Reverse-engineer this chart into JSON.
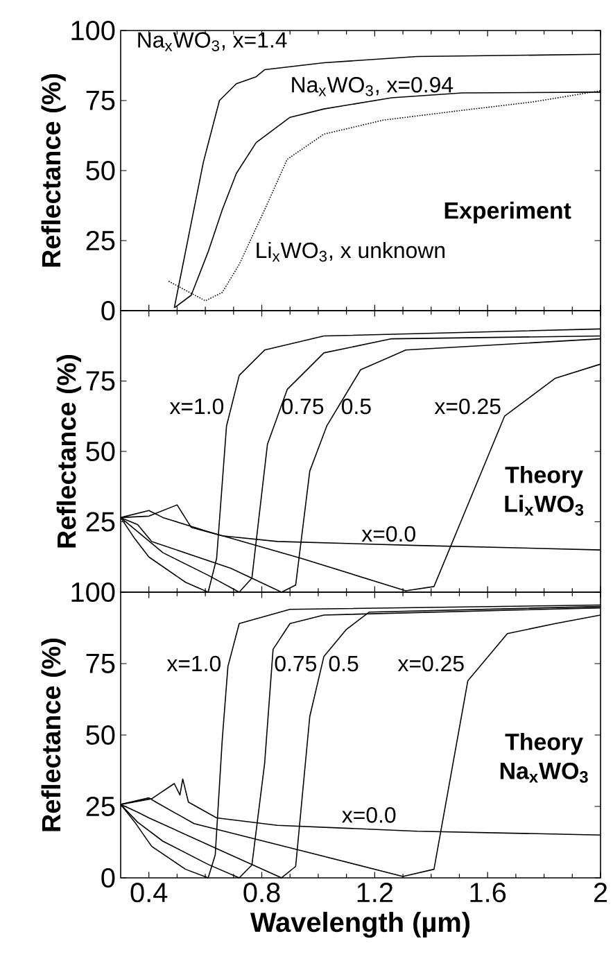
{
  "chart_data": [
    {
      "type": "line",
      "ylabel": "Reflectance (%)",
      "xlim": [
        0.3,
        2.0
      ],
      "ylim": [
        0,
        100
      ],
      "xticks": [
        0.4,
        0.8,
        1.2,
        1.6,
        2
      ],
      "yticks": [
        0,
        25,
        50,
        75,
        100
      ],
      "tick_labels": "y",
      "marker": "none",
      "grid": false,
      "annotations": [
        "Experiment"
      ],
      "series": [
        {
          "name": "Na$_{x}$WO$_{3}$, x=1.4",
          "color": "#000000",
          "line_style": "solid",
          "x": [
            0.49,
            0.593,
            0.65,
            0.71,
            0.78,
            0.81,
            1.02,
            1.35,
            2.0
          ],
          "values": [
            1,
            53,
            75,
            81,
            83.5,
            86,
            88.5,
            90.7,
            91.5
          ]
        },
        {
          "name": "Na$_{x}$WO$_{3}$, x=0.94",
          "color": "#000000",
          "line_style": "solid",
          "x": [
            0.49,
            0.55,
            0.61,
            0.66,
            0.71,
            0.78,
            0.9,
            1.02,
            1.26,
            1.51,
            2.0
          ],
          "values": [
            1,
            5.5,
            21,
            36,
            49,
            60,
            69,
            72,
            76,
            77.7,
            78
          ]
        },
        {
          "name": "Li$_{x}$WO$_{3}$, x unknown",
          "color": "#000000",
          "line_style": "dotted",
          "x": [
            0.47,
            0.6,
            0.66,
            0.72,
            0.81,
            0.89,
            1.02,
            1.23,
            1.51,
            1.76,
            2.0
          ],
          "values": [
            10.5,
            3.5,
            6.5,
            16.5,
            36,
            54,
            63,
            68,
            71.5,
            74.5,
            78.5
          ]
        }
      ]
    },
    {
      "type": "line",
      "ylabel": "Reflectance (%)",
      "xlim": [
        0.3,
        2.0
      ],
      "ylim": [
        0,
        100
      ],
      "xticks": [
        0.4,
        0.8,
        1.2,
        1.6,
        2
      ],
      "yticks": [
        {
          "value": 0,
          "label": null
        },
        25,
        50,
        75,
        {
          "value": 100,
          "label": null
        }
      ],
      "tick_labels": "y",
      "marker": "none",
      "grid": false,
      "annotations": [
        "Theory Li$_{x}$WO$_{3}$"
      ],
      "series": [
        {
          "name": "x=1.0",
          "color": "#000000",
          "line_style": "solid",
          "x": [
            0.3,
            0.35,
            0.4,
            0.53,
            0.61,
            0.64,
            0.675,
            0.72,
            0.81,
            1.02,
            2.0
          ],
          "values": [
            26.5,
            19,
            12.5,
            3.5,
            0,
            12,
            59,
            77,
            86,
            91,
            93.5
          ]
        },
        {
          "name": "0.75",
          "color": "#000000",
          "line_style": "solid",
          "x": [
            0.3,
            0.36,
            0.45,
            0.61,
            0.72,
            0.765,
            0.82,
            0.89,
            1.02,
            1.26,
            2.0
          ],
          "values": [
            26.5,
            21.5,
            14,
            6,
            0,
            5,
            52.5,
            72,
            85,
            90,
            91
          ]
        },
        {
          "name": "0.5",
          "color": "#000000",
          "line_style": "solid",
          "x": [
            0.3,
            0.36,
            0.41,
            0.69,
            0.87,
            0.92,
            0.97,
            1.03,
            1.15,
            1.31,
            2.0
          ],
          "values": [
            26.5,
            24,
            18,
            8.5,
            0,
            2.5,
            43,
            59,
            79,
            86,
            90
          ]
        },
        {
          "name": "x=0.25",
          "color": "#000000",
          "line_style": "solid",
          "x": [
            0.3,
            0.4,
            0.45,
            0.61,
            0.94,
            1.31,
            1.41,
            1.66,
            1.84,
            2.0
          ],
          "values": [
            26.5,
            29,
            26.5,
            21.5,
            12,
            0.5,
            2,
            62.5,
            76,
            81
          ]
        },
        {
          "name": "x=0.0",
          "color": "#000000",
          "line_style": "solid",
          "x": [
            0.3,
            0.4,
            0.5,
            0.55,
            0.66,
            0.855,
            1.35,
            2.0
          ],
          "values": [
            26.5,
            27,
            31,
            23,
            20,
            18,
            16.6,
            15
          ]
        }
      ]
    },
    {
      "type": "line",
      "ylabel": "Reflectance (%)",
      "xlabel": "Wavelength (µm)",
      "xlim": [
        0.3,
        2.0
      ],
      "ylim": [
        0,
        100
      ],
      "xticks": [
        0.4,
        0.8,
        1.2,
        1.6,
        2
      ],
      "yticks": [
        0,
        25,
        50,
        75,
        100
      ],
      "marker": "none",
      "grid": false,
      "annotations": [
        "Theory Na$_{x}$WO$_{3}$"
      ],
      "series": [
        {
          "name": "x=1.0",
          "color": "#000000",
          "line_style": "solid",
          "x": [
            0.3,
            0.35,
            0.41,
            0.53,
            0.61,
            0.635,
            0.66,
            0.68,
            0.72,
            0.9,
            2.0
          ],
          "values": [
            25.7,
            19.5,
            11,
            3,
            0,
            8,
            48.5,
            74,
            89,
            94,
            95.5
          ]
        },
        {
          "name": "0.75",
          "color": "#000000",
          "line_style": "solid",
          "x": [
            0.3,
            0.36,
            0.45,
            0.61,
            0.72,
            0.765,
            0.81,
            0.84,
            0.9,
            1.02,
            2.0
          ],
          "values": [
            25.7,
            19.5,
            12.8,
            4.7,
            0,
            4.5,
            40,
            80,
            89,
            92,
            94.5
          ]
        },
        {
          "name": "0.5",
          "color": "#000000",
          "line_style": "solid",
          "x": [
            0.3,
            0.36,
            0.4,
            0.69,
            0.87,
            0.92,
            0.97,
            1.02,
            1.1,
            1.18,
            2.0
          ],
          "values": [
            25.7,
            23,
            21,
            8,
            0,
            4,
            56.5,
            77.5,
            87,
            93,
            95
          ]
        },
        {
          "name": "x=0.25",
          "color": "#000000",
          "line_style": "solid",
          "x": [
            0.3,
            0.4,
            0.425,
            0.56,
            0.94,
            1.3,
            1.41,
            1.53,
            1.67,
            1.84,
            2.0
          ],
          "values": [
            25.7,
            28,
            26.5,
            19,
            9.5,
            0.5,
            3,
            69,
            85.5,
            89,
            92
          ]
        },
        {
          "name": "x=0.0",
          "color": "#000000",
          "line_style": "solid",
          "x": [
            0.3,
            0.41,
            0.49,
            0.51,
            0.52,
            0.54,
            0.64,
            0.855,
            1.35,
            2.0
          ],
          "values": [
            25.7,
            27.7,
            33,
            29,
            34.6,
            26.5,
            21,
            18.4,
            16.3,
            15
          ]
        }
      ]
    }
  ]
}
